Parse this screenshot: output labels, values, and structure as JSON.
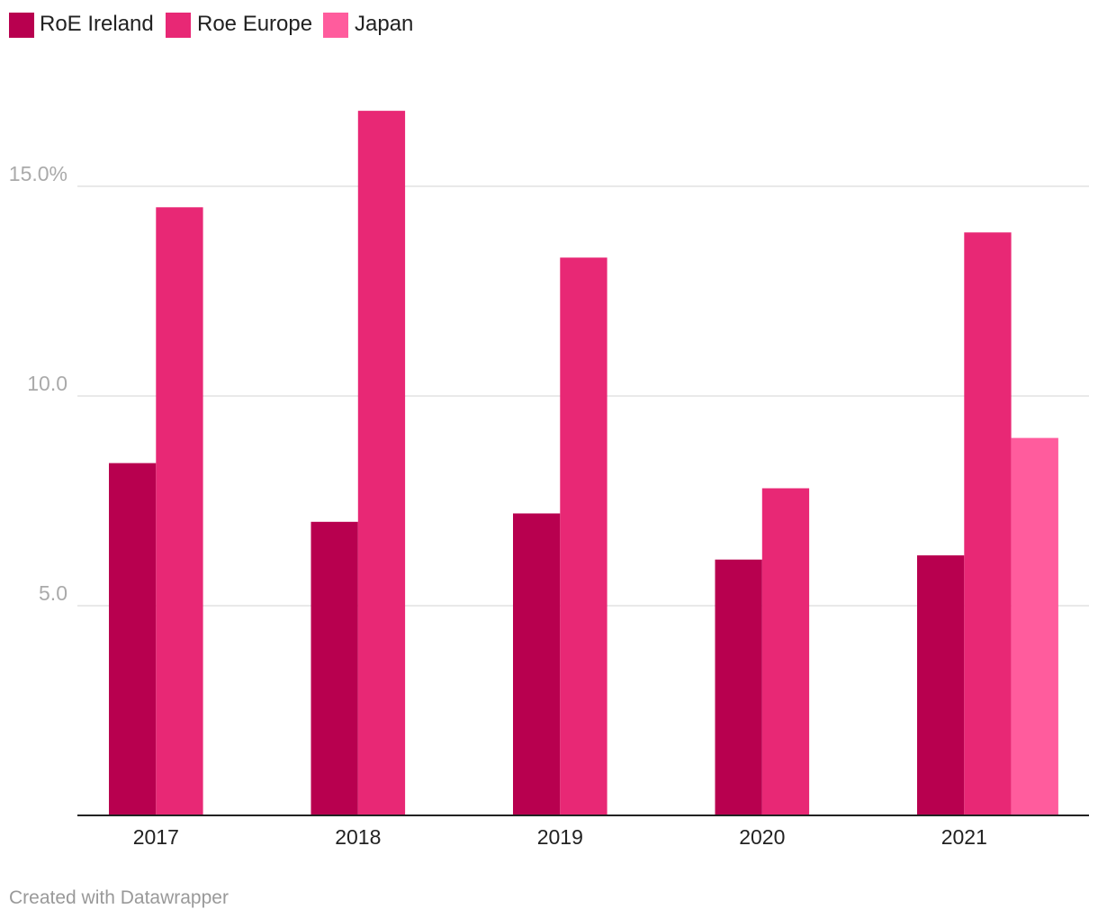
{
  "chart_data": {
    "type": "bar",
    "categories": [
      "2017",
      "2018",
      "2019",
      "2020",
      "2021"
    ],
    "series": [
      {
        "name": "RoE Ireland",
        "color": "#b8004f",
        "values": [
          8.4,
          7.0,
          7.2,
          6.1,
          6.2
        ]
      },
      {
        "name": "Roe Europe",
        "color": "#e82875",
        "values": [
          14.5,
          16.8,
          13.3,
          7.8,
          13.9
        ]
      },
      {
        "name": "Japan",
        "color": "#ff5c9d",
        "values": [
          null,
          null,
          null,
          null,
          9.0
        ]
      }
    ],
    "yticks": [
      {
        "value": 5,
        "label": "5.0"
      },
      {
        "value": 10,
        "label": "10.0"
      },
      {
        "value": 15,
        "label": "15.0%"
      }
    ],
    "ylim": [
      0,
      18
    ],
    "grid": true,
    "legend_position": "top-left",
    "title": "",
    "xlabel": "",
    "ylabel": ""
  },
  "footer": {
    "credit": "Created with Datawrapper"
  }
}
